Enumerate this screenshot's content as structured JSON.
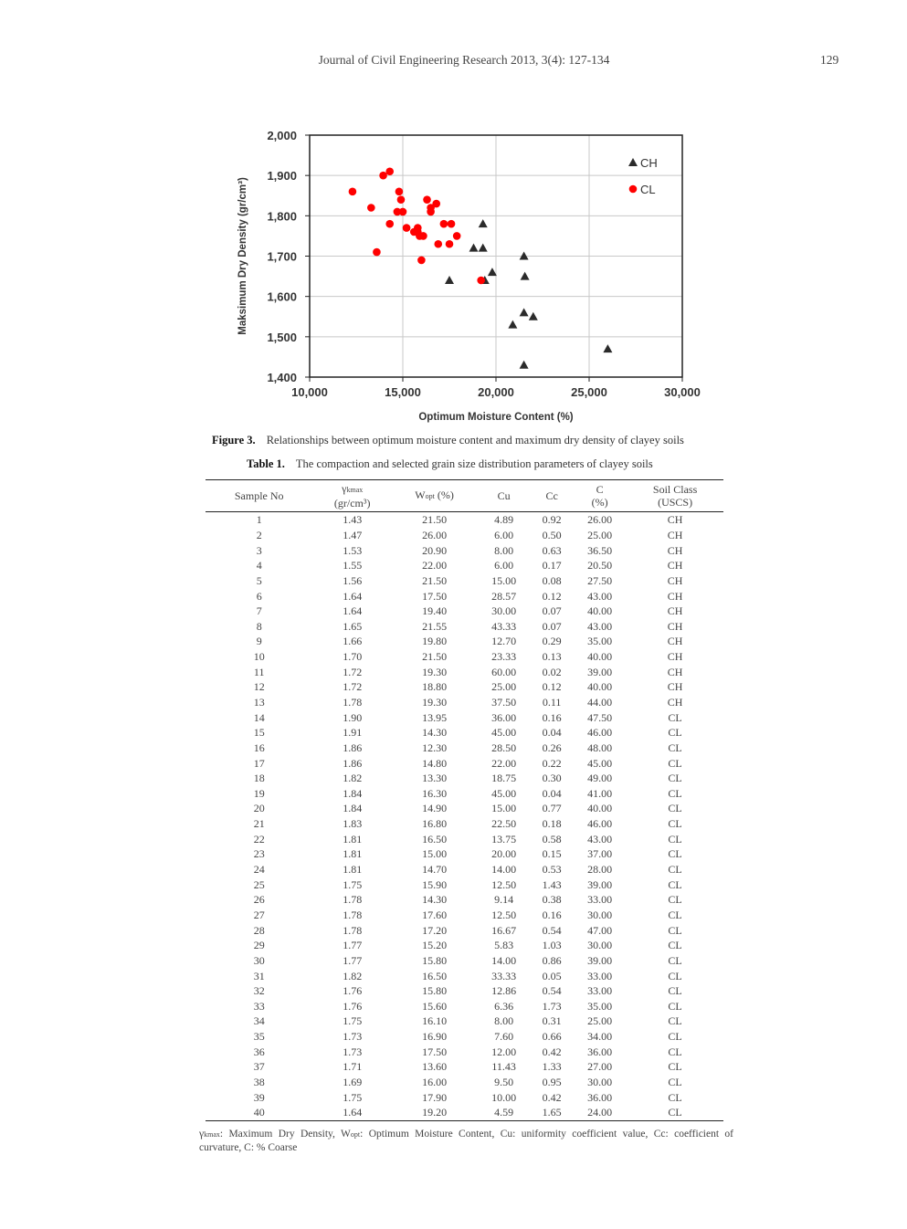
{
  "header": {
    "running_head": "Journal of Civil Engineering Research 2013, 3(4): 127-134",
    "page_number": "129"
  },
  "figure": {
    "label": "Figure 3.",
    "caption": "Relationships between optimum moisture content and maximum dry density of clayey soils"
  },
  "chart_data": {
    "type": "scatter",
    "xlabel": "Optimum Moisture Content  (%)",
    "ylabel": "Maksimum Dry Density (gr/cm³)",
    "xlim": [
      10000,
      30000
    ],
    "ylim": [
      1400,
      2000
    ],
    "xticks": [
      "10,000",
      "15,000",
      "20,000",
      "25,000",
      "30,000"
    ],
    "yticks": [
      "1,400",
      "1,500",
      "1,600",
      "1,700",
      "1,800",
      "1,900",
      "2,000"
    ],
    "grid": true,
    "legend_placement": "top-right",
    "series": [
      {
        "name": "CH",
        "marker": "triangle",
        "color": "#2b2b2b",
        "points": [
          [
            21500,
            1430
          ],
          [
            26000,
            1470
          ],
          [
            20900,
            1530
          ],
          [
            22000,
            1550
          ],
          [
            21500,
            1560
          ],
          [
            17500,
            1640
          ],
          [
            19400,
            1640
          ],
          [
            21550,
            1650
          ],
          [
            19800,
            1660
          ],
          [
            21500,
            1700
          ],
          [
            19300,
            1720
          ],
          [
            18800,
            1720
          ],
          [
            19300,
            1780
          ]
        ]
      },
      {
        "name": "CL",
        "marker": "circle",
        "color": "#ff0000",
        "points": [
          [
            13950,
            1900
          ],
          [
            14300,
            1910
          ],
          [
            12300,
            1860
          ],
          [
            14800,
            1860
          ],
          [
            13300,
            1820
          ],
          [
            16300,
            1840
          ],
          [
            14900,
            1840
          ],
          [
            16800,
            1830
          ],
          [
            16500,
            1810
          ],
          [
            15000,
            1810
          ],
          [
            14700,
            1810
          ],
          [
            15900,
            1750
          ],
          [
            14300,
            1780
          ],
          [
            17600,
            1780
          ],
          [
            17200,
            1780
          ],
          [
            15200,
            1770
          ],
          [
            15800,
            1770
          ],
          [
            16500,
            1820
          ],
          [
            15800,
            1760
          ],
          [
            15600,
            1760
          ],
          [
            16100,
            1750
          ],
          [
            16900,
            1730
          ],
          [
            17500,
            1730
          ],
          [
            13600,
            1710
          ],
          [
            16000,
            1690
          ],
          [
            17900,
            1750
          ],
          [
            19200,
            1640
          ]
        ]
      }
    ]
  },
  "table": {
    "label": "Table 1.",
    "caption": "The compaction and selected grain size distribution parameters of clayey soils",
    "headers": {
      "sample": "Sample No",
      "gamma": "γ",
      "gamma_sub": "kmax",
      "gamma_unit": "(gr/cm³)",
      "w": "W",
      "w_sub": "opt",
      "w_unit": " (%)",
      "cu": "Cu",
      "cc": "Cc",
      "c": "C",
      "c_unit": "(%)",
      "soil": "Soil Class",
      "soil_unit": "(USCS)"
    },
    "rows": [
      [
        "1",
        "1.43",
        "21.50",
        "4.89",
        "0.92",
        "26.00",
        "CH"
      ],
      [
        "2",
        "1.47",
        "26.00",
        "6.00",
        "0.50",
        "25.00",
        "CH"
      ],
      [
        "3",
        "1.53",
        "20.90",
        "8.00",
        "0.63",
        "36.50",
        "CH"
      ],
      [
        "4",
        "1.55",
        "22.00",
        "6.00",
        "0.17",
        "20.50",
        "CH"
      ],
      [
        "5",
        "1.56",
        "21.50",
        "15.00",
        "0.08",
        "27.50",
        "CH"
      ],
      [
        "6",
        "1.64",
        "17.50",
        "28.57",
        "0.12",
        "43.00",
        "CH"
      ],
      [
        "7",
        "1.64",
        "19.40",
        "30.00",
        "0.07",
        "40.00",
        "CH"
      ],
      [
        "8",
        "1.65",
        "21.55",
        "43.33",
        "0.07",
        "43.00",
        "CH"
      ],
      [
        "9",
        "1.66",
        "19.80",
        "12.70",
        "0.29",
        "35.00",
        "CH"
      ],
      [
        "10",
        "1.70",
        "21.50",
        "23.33",
        "0.13",
        "40.00",
        "CH"
      ],
      [
        "11",
        "1.72",
        "19.30",
        "60.00",
        "0.02",
        "39.00",
        "CH"
      ],
      [
        "12",
        "1.72",
        "18.80",
        "25.00",
        "0.12",
        "40.00",
        "CH"
      ],
      [
        "13",
        "1.78",
        "19.30",
        "37.50",
        "0.11",
        "44.00",
        "CH"
      ],
      [
        "14",
        "1.90",
        "13.95",
        "36.00",
        "0.16",
        "47.50",
        "CL"
      ],
      [
        "15",
        "1.91",
        "14.30",
        "45.00",
        "0.04",
        "46.00",
        "CL"
      ],
      [
        "16",
        "1.86",
        "12.30",
        "28.50",
        "0.26",
        "48.00",
        "CL"
      ],
      [
        "17",
        "1.86",
        "14.80",
        "22.00",
        "0.22",
        "45.00",
        "CL"
      ],
      [
        "18",
        "1.82",
        "13.30",
        "18.75",
        "0.30",
        "49.00",
        "CL"
      ],
      [
        "19",
        "1.84",
        "16.30",
        "45.00",
        "0.04",
        "41.00",
        "CL"
      ],
      [
        "20",
        "1.84",
        "14.90",
        "15.00",
        "0.77",
        "40.00",
        "CL"
      ],
      [
        "21",
        "1.83",
        "16.80",
        "22.50",
        "0.18",
        "46.00",
        "CL"
      ],
      [
        "22",
        "1.81",
        "16.50",
        "13.75",
        "0.58",
        "43.00",
        "CL"
      ],
      [
        "23",
        "1.81",
        "15.00",
        "20.00",
        "0.15",
        "37.00",
        "CL"
      ],
      [
        "24",
        "1.81",
        "14.70",
        "14.00",
        "0.53",
        "28.00",
        "CL"
      ],
      [
        "25",
        "1.75",
        "15.90",
        "12.50",
        "1.43",
        "39.00",
        "CL"
      ],
      [
        "26",
        "1.78",
        "14.30",
        "9.14",
        "0.38",
        "33.00",
        "CL"
      ],
      [
        "27",
        "1.78",
        "17.60",
        "12.50",
        "0.16",
        "30.00",
        "CL"
      ],
      [
        "28",
        "1.78",
        "17.20",
        "16.67",
        "0.54",
        "47.00",
        "CL"
      ],
      [
        "29",
        "1.77",
        "15.20",
        "5.83",
        "1.03",
        "30.00",
        "CL"
      ],
      [
        "30",
        "1.77",
        "15.80",
        "14.00",
        "0.86",
        "39.00",
        "CL"
      ],
      [
        "31",
        "1.82",
        "16.50",
        "33.33",
        "0.05",
        "33.00",
        "CL"
      ],
      [
        "32",
        "1.76",
        "15.80",
        "12.86",
        "0.54",
        "33.00",
        "CL"
      ],
      [
        "33",
        "1.76",
        "15.60",
        "6.36",
        "1.73",
        "35.00",
        "CL"
      ],
      [
        "34",
        "1.75",
        "16.10",
        "8.00",
        "0.31",
        "25.00",
        "CL"
      ],
      [
        "35",
        "1.73",
        "16.90",
        "7.60",
        "0.66",
        "34.00",
        "CL"
      ],
      [
        "36",
        "1.73",
        "17.50",
        "12.00",
        "0.42",
        "36.00",
        "CL"
      ],
      [
        "37",
        "1.71",
        "13.60",
        "11.43",
        "1.33",
        "27.00",
        "CL"
      ],
      [
        "38",
        "1.69",
        "16.00",
        "9.50",
        "0.95",
        "30.00",
        "CL"
      ],
      [
        "39",
        "1.75",
        "17.90",
        "10.00",
        "0.42",
        "36.00",
        "CL"
      ],
      [
        "40",
        "1.64",
        "19.20",
        "4.59",
        "1.65",
        "24.00",
        "CL"
      ]
    ],
    "footnote": {
      "gamma": "γ",
      "gamma_sub": "kmax",
      "text1": ": Maximum Dry Density, W",
      "w_sub": "opt",
      "text2": ": Optimum Moisture Content, Cu: uniformity coefficient value, Cc: coefficient of curvature, C: % Coarse"
    }
  }
}
